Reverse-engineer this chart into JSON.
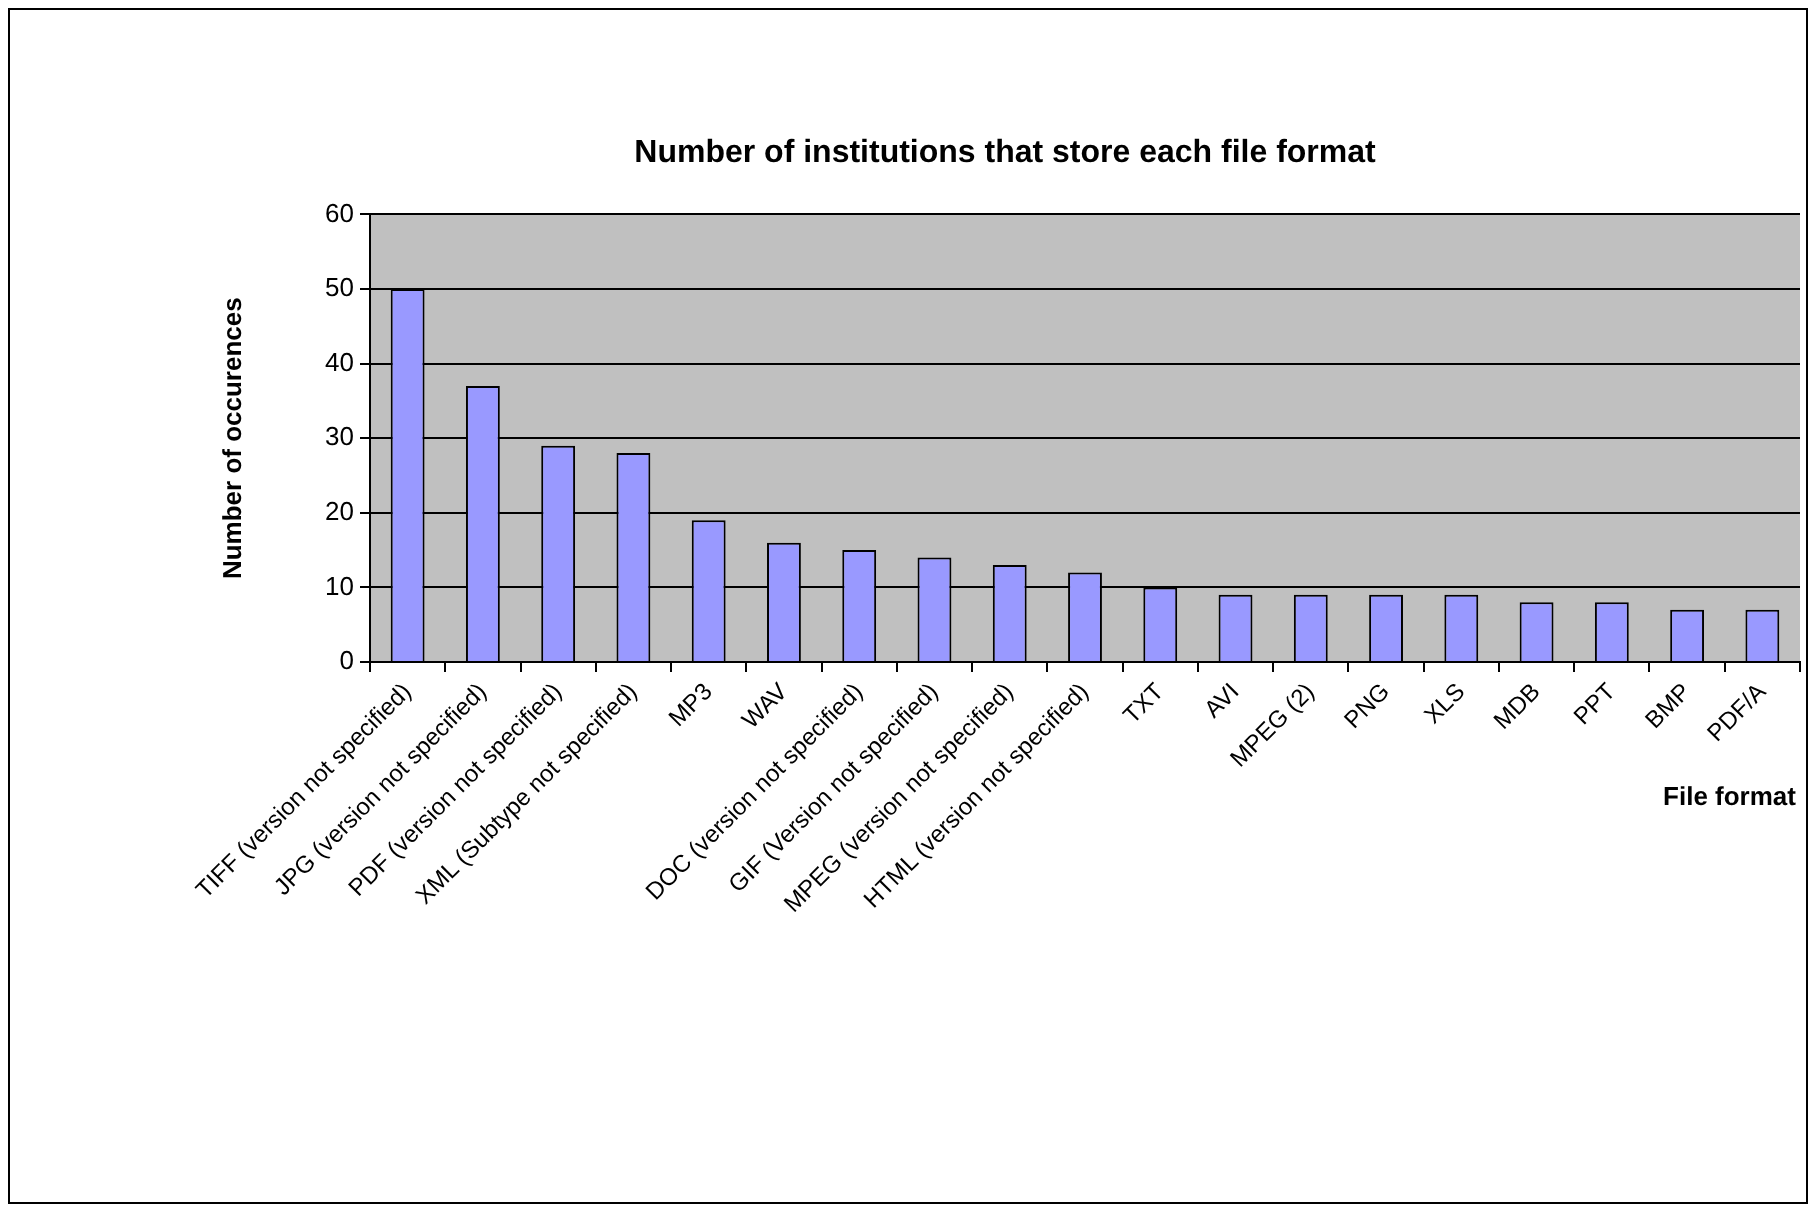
{
  "chart_data": {
    "type": "bar",
    "title": "Number of institutions that store each file format",
    "xlabel": "File format",
    "ylabel": "Number of occurences",
    "categories": [
      "TIFF (version not specified)",
      "JPG (version not specified)",
      "PDF (version not specified)",
      "XML (Subtype not specified)",
      "MP3",
      "WAV",
      "DOC (version not specified)",
      "GIF (Version not specified)",
      "MPEG (version not specified)",
      "HTML (version not specified)",
      "TXT",
      "AVI",
      "MPEG (2)",
      "PNG",
      "XLS",
      "MDB",
      "PPT",
      "BMP",
      "PDF/A"
    ],
    "values": [
      50,
      37,
      29,
      28,
      19,
      16,
      15,
      14,
      13,
      12,
      10,
      9,
      9,
      9,
      9,
      8,
      8,
      7,
      7
    ],
    "color": "#9999ff",
    "ylim": [
      0,
      60
    ],
    "yticks": [
      0,
      10,
      20,
      30,
      40,
      50,
      60
    ],
    "grid": "y",
    "legend": false
  }
}
